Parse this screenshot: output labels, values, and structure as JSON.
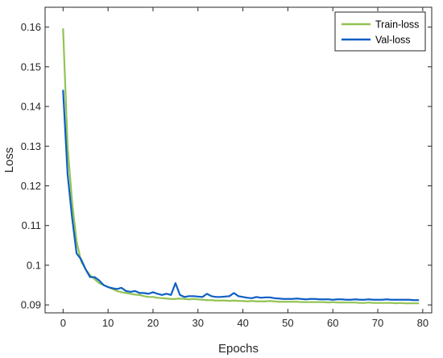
{
  "chart_data": {
    "type": "line",
    "title": "",
    "xlabel": "Epochs",
    "ylabel": "Loss",
    "xlim": [
      -4,
      82
    ],
    "ylim": [
      0.088,
      0.165
    ],
    "xticks": [
      0,
      10,
      20,
      30,
      40,
      50,
      60,
      70,
      80
    ],
    "yticks": [
      0.09,
      0.1,
      0.11,
      0.12,
      0.13,
      0.14,
      0.15,
      0.16
    ],
    "ytick_labels": [
      "0.09",
      "0.1",
      "0.11",
      "0.12",
      "0.13",
      "0.14",
      "0.15",
      "0.16"
    ],
    "legend_position": "top-right",
    "grid": false,
    "x": [
      0,
      1,
      2,
      3,
      4,
      5,
      6,
      7,
      8,
      9,
      10,
      11,
      12,
      13,
      14,
      15,
      16,
      17,
      18,
      19,
      20,
      21,
      22,
      23,
      24,
      25,
      26,
      27,
      28,
      29,
      30,
      31,
      32,
      33,
      34,
      35,
      36,
      37,
      38,
      39,
      40,
      41,
      42,
      43,
      44,
      45,
      46,
      47,
      48,
      49,
      50,
      51,
      52,
      53,
      54,
      55,
      56,
      57,
      58,
      59,
      60,
      61,
      62,
      63,
      64,
      65,
      66,
      67,
      68,
      69,
      70,
      71,
      72,
      73,
      74,
      75,
      76,
      77,
      78,
      79
    ],
    "series": [
      {
        "name": "Train-loss",
        "color": "#92c353",
        "values": [
          0.1595,
          0.13,
          0.116,
          0.106,
          0.101,
          0.099,
          0.0975,
          0.0965,
          0.0955,
          0.095,
          0.0945,
          0.094,
          0.0935,
          0.0932,
          0.093,
          0.0928,
          0.0926,
          0.0925,
          0.0922,
          0.092,
          0.092,
          0.0918,
          0.0917,
          0.0916,
          0.0915,
          0.0915,
          0.0916,
          0.0915,
          0.0914,
          0.0915,
          0.0914,
          0.0913,
          0.0912,
          0.0912,
          0.0911,
          0.0911,
          0.0911,
          0.091,
          0.0911,
          0.091,
          0.091,
          0.0909,
          0.091,
          0.0909,
          0.0909,
          0.0909,
          0.091,
          0.0909,
          0.0908,
          0.0908,
          0.0908,
          0.0908,
          0.0908,
          0.0907,
          0.0907,
          0.0907,
          0.0907,
          0.0907,
          0.0907,
          0.0906,
          0.0907,
          0.0906,
          0.0906,
          0.0906,
          0.0906,
          0.0906,
          0.0905,
          0.0905,
          0.0906,
          0.0905,
          0.0905,
          0.0905,
          0.0905,
          0.0905,
          0.0904,
          0.0905,
          0.0904,
          0.0904,
          0.0904,
          0.0904
        ]
      },
      {
        "name": "Val-loss",
        "color": "#0e5fc4",
        "values": [
          0.144,
          0.123,
          0.112,
          0.103,
          0.1015,
          0.099,
          0.097,
          0.097,
          0.0962,
          0.095,
          0.0945,
          0.0942,
          0.094,
          0.0943,
          0.0935,
          0.0933,
          0.0935,
          0.093,
          0.093,
          0.0928,
          0.0932,
          0.0928,
          0.0925,
          0.0928,
          0.0925,
          0.0955,
          0.0925,
          0.092,
          0.0922,
          0.0922,
          0.0921,
          0.092,
          0.0928,
          0.0922,
          0.092,
          0.092,
          0.0921,
          0.0922,
          0.093,
          0.0922,
          0.092,
          0.0918,
          0.0917,
          0.092,
          0.0918,
          0.0919,
          0.0919,
          0.0917,
          0.0916,
          0.0915,
          0.0915,
          0.0915,
          0.0916,
          0.0915,
          0.0914,
          0.0915,
          0.0915,
          0.0914,
          0.0914,
          0.0914,
          0.0913,
          0.0914,
          0.0914,
          0.0913,
          0.0913,
          0.0914,
          0.0913,
          0.0913,
          0.0914,
          0.0913,
          0.0913,
          0.0913,
          0.0914,
          0.0913,
          0.0913,
          0.0913,
          0.0913,
          0.0913,
          0.0912,
          0.0912
        ]
      }
    ]
  }
}
